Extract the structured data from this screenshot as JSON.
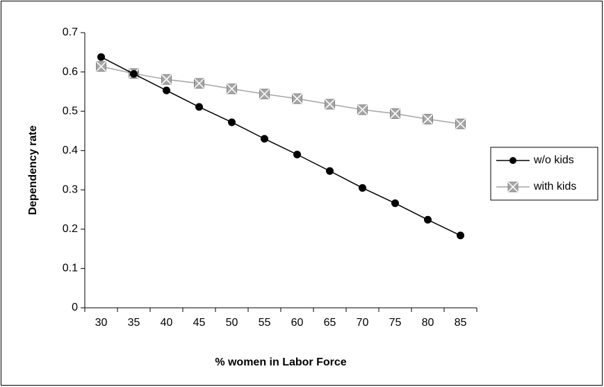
{
  "chart_data": {
    "type": "line",
    "x_label": "% women in Labor Force",
    "y_label": "Dependency rate",
    "categories": [
      30,
      35,
      40,
      45,
      50,
      55,
      60,
      65,
      70,
      75,
      80,
      85
    ],
    "series": [
      {
        "name": "w/o kids",
        "color": "#000000",
        "marker": "circle",
        "values": [
          0.638,
          0.595,
          0.553,
          0.511,
          0.472,
          0.43,
          0.39,
          0.348,
          0.305,
          0.266,
          0.224,
          0.184
        ]
      },
      {
        "name": "with kids",
        "color": "#a6a6a6",
        "marker": "square-x",
        "values": [
          0.614,
          0.596,
          0.581,
          0.571,
          0.557,
          0.544,
          0.532,
          0.518,
          0.504,
          0.494,
          0.48,
          0.468
        ]
      }
    ],
    "ylim": [
      0,
      0.7
    ],
    "yticks": [
      0,
      0.1,
      0.2,
      0.3,
      0.4,
      0.5,
      0.6,
      0.7
    ],
    "grid": false,
    "legend": "right"
  }
}
